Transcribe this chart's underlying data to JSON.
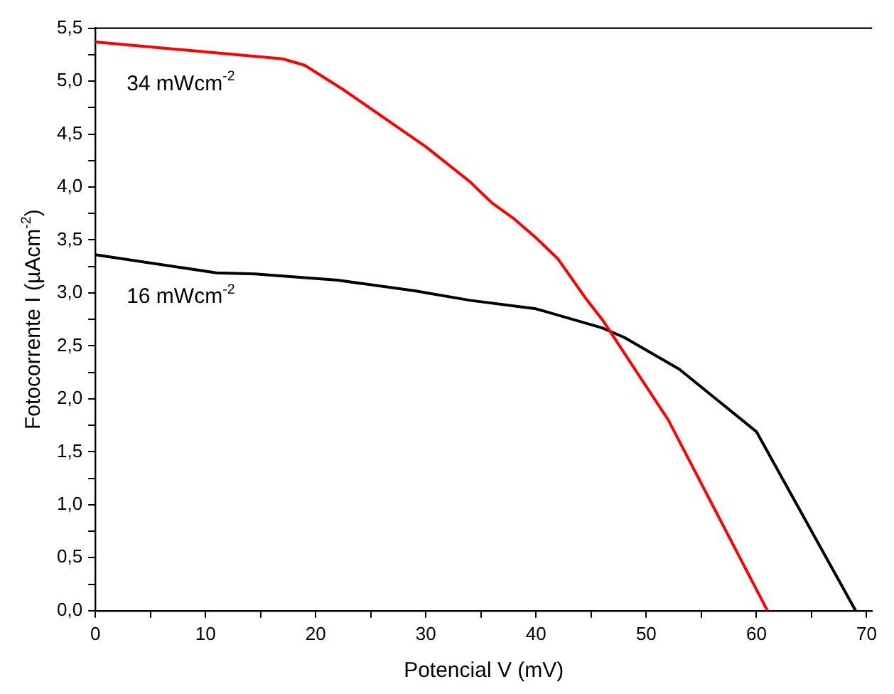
{
  "chart_data": {
    "type": "line",
    "xlabel": "Potencial V (mV)",
    "ylabel": "Fotocorrente I (µAcm$^{-2}$)",
    "xlim": [
      0,
      70.5
    ],
    "xticks": [
      0,
      {
        "value": 5,
        "label": null
      },
      10,
      {
        "value": 15,
        "label": null
      },
      20,
      {
        "value": 25,
        "label": null
      },
      30,
      {
        "value": 35,
        "label": null
      },
      40,
      {
        "value": 45,
        "label": null
      },
      50,
      {
        "value": 55,
        "label": null
      },
      60,
      {
        "value": 65,
        "label": null
      },
      70
    ],
    "ylim": [
      0,
      5.5
    ],
    "yticks": [
      {
        "value": 0,
        "label": "0,0"
      },
      {
        "value": 0.25,
        "label": null
      },
      {
        "value": 0.5,
        "label": "0,5"
      },
      {
        "value": 0.75,
        "label": null
      },
      {
        "value": 1,
        "label": "1,0"
      },
      {
        "value": 1.25,
        "label": null
      },
      {
        "value": 1.5,
        "label": "1,5"
      },
      {
        "value": 1.75,
        "label": null
      },
      {
        "value": 2,
        "label": "2,0"
      },
      {
        "value": 2.25,
        "label": null
      },
      {
        "value": 2.5,
        "label": "2,5"
      },
      {
        "value": 2.75,
        "label": null
      },
      {
        "value": 3,
        "label": "3,0"
      },
      {
        "value": 3.25,
        "label": null
      },
      {
        "value": 3.5,
        "label": "3,5"
      },
      {
        "value": 3.75,
        "label": null
      },
      {
        "value": 4,
        "label": "4,0"
      },
      {
        "value": 4.25,
        "label": null
      },
      {
        "value": 4.5,
        "label": "4,5"
      },
      {
        "value": 4.75,
        "label": null
      },
      {
        "value": 5,
        "label": "5,0"
      },
      {
        "value": 5.25,
        "label": null
      },
      {
        "value": 5.5,
        "label": "5,5"
      }
    ],
    "grid": false,
    "legend": false,
    "marker": "none",
    "line_style": "solid",
    "series": [
      {
        "name": "34 mWcm$^{-2}$",
        "color": "#ff0000",
        "x": [
          0,
          17,
          19,
          22.5,
          30,
          34,
          36,
          38,
          40,
          42,
          44.5,
          46,
          52,
          61
        ],
        "values": [
          5.37,
          5.21,
          5.15,
          4.92,
          4.38,
          4.05,
          3.85,
          3.7,
          3.52,
          3.32,
          2.95,
          2.75,
          1.8,
          0
        ]
      },
      {
        "name": "16 mWcm$^{-2}$",
        "color": "#000000",
        "x": [
          0,
          11,
          14.5,
          22,
          29,
          34,
          40,
          46,
          48,
          53,
          60,
          69
        ],
        "values": [
          3.36,
          3.19,
          3.18,
          3.12,
          3.02,
          2.93,
          2.85,
          2.67,
          2.58,
          2.28,
          1.69,
          0
        ]
      }
    ]
  }
}
